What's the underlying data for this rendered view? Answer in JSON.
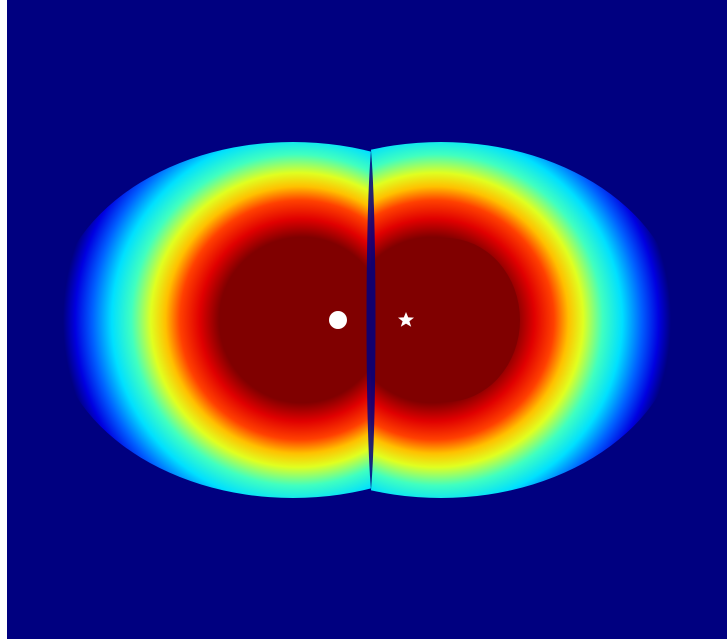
{
  "image": {
    "description_kind": "false-color field plot",
    "colormap": "jet",
    "colormap_stops": [
      "#000080",
      "#0000ff",
      "#00ffff",
      "#ffff00",
      "#ff0000",
      "#800000"
    ],
    "background_color": "#000080",
    "saturated_color": "#800000",
    "has_axes": false,
    "has_colorbar": false,
    "has_title": false
  },
  "lobes": [
    {
      "side": "left",
      "shape": "crescent"
    },
    {
      "side": "right",
      "shape": "crescent"
    }
  ],
  "markers": [
    {
      "shape": "circle",
      "color": "#ffffff"
    },
    {
      "shape": "star",
      "color": "#ffffff"
    }
  ]
}
